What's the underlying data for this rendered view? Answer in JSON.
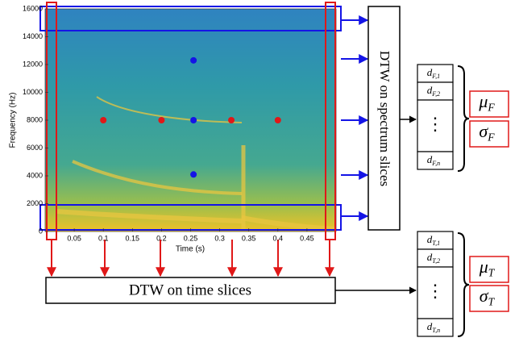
{
  "spectrogram": {
    "ylabel": "Frequency (Hz)",
    "xlabel": "Time (s)",
    "xlim": [
      0,
      0.5
    ],
    "ylim": [
      0,
      16000
    ],
    "xticks": [
      0.05,
      0.1,
      0.15,
      0.2,
      0.25,
      0.3,
      0.35,
      0.4,
      0.45
    ],
    "yticks": [
      0,
      2000,
      4000,
      6000,
      8000,
      10000,
      12000,
      14000,
      16000
    ],
    "red_points": {
      "color": "#e01818",
      "x": [
        0.1,
        0.2,
        0.32,
        0.4
      ],
      "y": [
        8000,
        8000,
        8000,
        8000
      ]
    },
    "blue_points": {
      "color": "#1414e6",
      "x": [
        0.255,
        0.255,
        0.255
      ],
      "y": [
        12300,
        8000,
        4100
      ]
    }
  },
  "spectrum_box": {
    "label": "DTW on spectrum slices"
  },
  "time_box": {
    "label": "DTW on time slices"
  },
  "freq_vector": {
    "cells": [
      {
        "symbol": "d",
        "subscript": "F,1"
      },
      {
        "symbol": "d",
        "subscript": "F,2"
      },
      {
        "symbol": "d",
        "subscript": "F,n"
      }
    ],
    "ellipsis": "⋮"
  },
  "time_vector": {
    "cells": [
      {
        "symbol": "d",
        "subscript": "T,1"
      },
      {
        "symbol": "d",
        "subscript": "T,2"
      },
      {
        "symbol": "d",
        "subscript": "T,n"
      }
    ],
    "ellipsis": "⋮"
  },
  "freq_stats": [
    {
      "symbol": "μ",
      "subscript": "F"
    },
    {
      "symbol": "σ",
      "subscript": "F"
    }
  ],
  "time_stats": [
    {
      "symbol": "μ",
      "subscript": "T"
    },
    {
      "symbol": "σ",
      "subscript": "T"
    }
  ]
}
